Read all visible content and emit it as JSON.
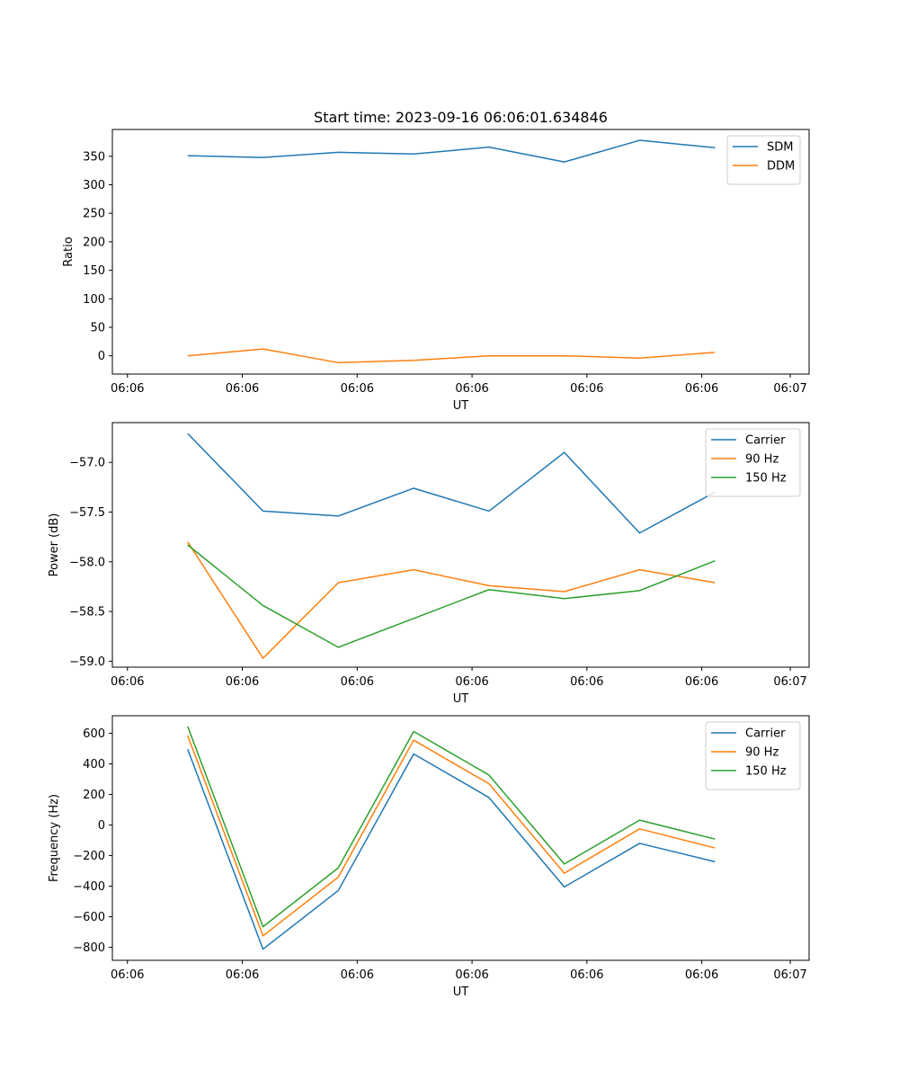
{
  "chart_data": [
    {
      "type": "line",
      "title": "Start time: 2023-09-16 06:06:01.634846",
      "xlabel": "UT",
      "ylabel": "Ratio",
      "x": [
        1,
        2,
        3,
        4,
        5,
        6,
        7,
        8
      ],
      "xlim": [
        0,
        9.25
      ],
      "x_ticks": [
        0.2,
        1.725,
        3.25,
        4.775,
        6.3,
        7.825,
        9.0
      ],
      "x_tick_labels": [
        "06:06",
        "06:06",
        "06:06",
        "06:06",
        "06:06",
        "06:06",
        "06:07"
      ],
      "ylim": [
        -32,
        397
      ],
      "y_ticks": [
        0,
        50,
        100,
        150,
        200,
        250,
        300,
        350
      ],
      "y_tick_labels": [
        "0",
        "50",
        "100",
        "150",
        "200",
        "250",
        "300",
        "350"
      ],
      "legend_position": "top-right",
      "series": [
        {
          "name": "SDM",
          "color": "#1f77b4",
          "values": [
            351,
            348,
            357,
            354,
            366,
            340,
            378,
            365
          ]
        },
        {
          "name": "DDM",
          "color": "#ff7f0e",
          "values": [
            0,
            12,
            -12,
            -8,
            0,
            0,
            -4,
            6
          ]
        }
      ]
    },
    {
      "type": "line",
      "title": "",
      "xlabel": "UT",
      "ylabel": "Power (dB)",
      "x": [
        1,
        2,
        3,
        4,
        5,
        6,
        7,
        8
      ],
      "xlim": [
        0,
        9.25
      ],
      "x_ticks": [
        0.2,
        1.725,
        3.25,
        4.775,
        6.3,
        7.825,
        9.0
      ],
      "x_tick_labels": [
        "06:06",
        "06:06",
        "06:06",
        "06:06",
        "06:06",
        "06:06",
        "06:07"
      ],
      "ylim": [
        -59.06,
        -56.6
      ],
      "y_ticks": [
        -59.0,
        -58.5,
        -58.0,
        -57.5,
        -57.0
      ],
      "y_tick_labels": [
        "−59.0",
        "−58.5",
        "−58.0",
        "−57.5",
        "−57.0"
      ],
      "legend_position": "top-right",
      "series": [
        {
          "name": "Carrier",
          "color": "#1f77b4",
          "values": [
            -56.71,
            -57.49,
            -57.54,
            -57.26,
            -57.49,
            -56.9,
            -57.71,
            -57.3
          ]
        },
        {
          "name": "90 Hz",
          "color": "#ff7f0e",
          "values": [
            -57.8,
            -58.97,
            -58.21,
            -58.08,
            -58.24,
            -58.3,
            -58.08,
            -58.21
          ]
        },
        {
          "name": "150 Hz",
          "color": "#2ca02c",
          "values": [
            -57.83,
            -58.44,
            -58.86,
            -58.57,
            -58.28,
            -58.37,
            -58.29,
            -57.99
          ]
        }
      ]
    },
    {
      "type": "line",
      "title": "",
      "xlabel": "UT",
      "ylabel": "Frequency (Hz)",
      "x": [
        1,
        2,
        3,
        4,
        5,
        6,
        7,
        8
      ],
      "xlim": [
        0,
        9.25
      ],
      "x_ticks": [
        0.2,
        1.725,
        3.25,
        4.775,
        6.3,
        7.825,
        9.0
      ],
      "x_tick_labels": [
        "06:06",
        "06:06",
        "06:06",
        "06:06",
        "06:06",
        "06:06",
        "06:07"
      ],
      "ylim": [
        -885,
        715
      ],
      "y_ticks": [
        -800,
        -600,
        -400,
        -200,
        0,
        200,
        400,
        600
      ],
      "y_tick_labels": [
        "−800",
        "−600",
        "−400",
        "−200",
        "0",
        "200",
        "400",
        "600"
      ],
      "legend_position": "top-right",
      "series": [
        {
          "name": "Carrier",
          "color": "#1f77b4",
          "values": [
            495,
            -812,
            -428,
            465,
            180,
            -405,
            -120,
            -240
          ]
        },
        {
          "name": "90 Hz",
          "color": "#ff7f0e",
          "values": [
            585,
            -725,
            -340,
            555,
            270,
            -315,
            -25,
            -150
          ]
        },
        {
          "name": "150 Hz",
          "color": "#2ca02c",
          "values": [
            645,
            -665,
            -280,
            612,
            327,
            -255,
            32,
            -92
          ]
        }
      ]
    }
  ]
}
